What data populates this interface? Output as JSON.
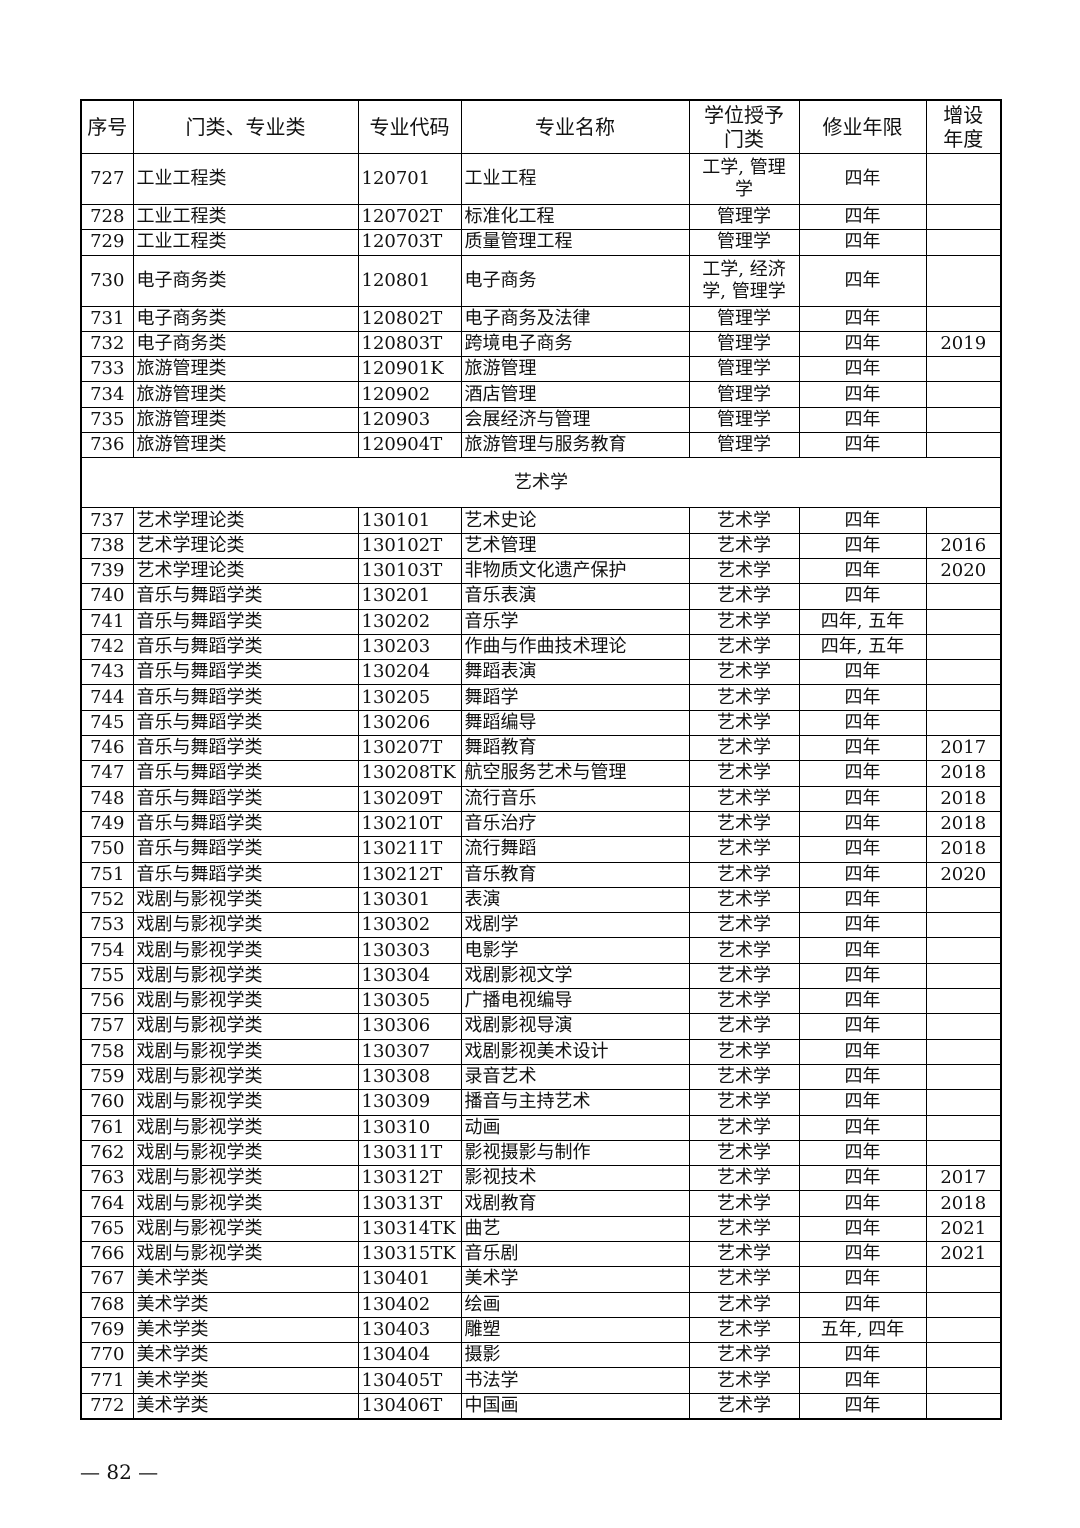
{
  "table": {
    "headers": [
      "序号",
      "门类、专业类",
      "专业代码",
      "专业名称",
      "学位授予门类",
      "修业年限",
      "增设年度"
    ],
    "rows_before": [
      [
        "727",
        "工业工程类",
        "120701",
        "工业工程",
        "工学, 管理学",
        "四年",
        ""
      ],
      [
        "728",
        "工业工程类",
        "120702T",
        "标准化工程",
        "管理学",
        "四年",
        ""
      ],
      [
        "729",
        "工业工程类",
        "120703T",
        "质量管理工程",
        "管理学",
        "四年",
        ""
      ],
      [
        "730",
        "电子商务类",
        "120801",
        "电子商务",
        "工学, 经济学, 管理学",
        "四年",
        ""
      ],
      [
        "731",
        "电子商务类",
        "120802T",
        "电子商务及法律",
        "管理学",
        "四年",
        ""
      ],
      [
        "732",
        "电子商务类",
        "120803T",
        "跨境电子商务",
        "管理学",
        "四年",
        "2019"
      ],
      [
        "733",
        "旅游管理类",
        "120901K",
        "旅游管理",
        "管理学",
        "四年",
        ""
      ],
      [
        "734",
        "旅游管理类",
        "120902",
        "酒店管理",
        "管理学",
        "四年",
        ""
      ],
      [
        "735",
        "旅游管理类",
        "120903",
        "会展经济与管理",
        "管理学",
        "四年",
        ""
      ],
      [
        "736",
        "旅游管理类",
        "120904T",
        "旅游管理与服务教育",
        "管理学",
        "四年",
        ""
      ]
    ],
    "section_title": "艺术学",
    "rows_after": [
      [
        "737",
        "艺术学理论类",
        "130101",
        "艺术史论",
        "艺术学",
        "四年",
        ""
      ],
      [
        "738",
        "艺术学理论类",
        "130102T",
        "艺术管理",
        "艺术学",
        "四年",
        "2016"
      ],
      [
        "739",
        "艺术学理论类",
        "130103T",
        "非物质文化遗产保护",
        "艺术学",
        "四年",
        "2020"
      ],
      [
        "740",
        "音乐与舞蹈学类",
        "130201",
        "音乐表演",
        "艺术学",
        "四年",
        ""
      ],
      [
        "741",
        "音乐与舞蹈学类",
        "130202",
        "音乐学",
        "艺术学",
        "四年, 五年",
        ""
      ],
      [
        "742",
        "音乐与舞蹈学类",
        "130203",
        "作曲与作曲技术理论",
        "艺术学",
        "四年, 五年",
        ""
      ],
      [
        "743",
        "音乐与舞蹈学类",
        "130204",
        "舞蹈表演",
        "艺术学",
        "四年",
        ""
      ],
      [
        "744",
        "音乐与舞蹈学类",
        "130205",
        "舞蹈学",
        "艺术学",
        "四年",
        ""
      ],
      [
        "745",
        "音乐与舞蹈学类",
        "130206",
        "舞蹈编导",
        "艺术学",
        "四年",
        ""
      ],
      [
        "746",
        "音乐与舞蹈学类",
        "130207T",
        "舞蹈教育",
        "艺术学",
        "四年",
        "2017"
      ],
      [
        "747",
        "音乐与舞蹈学类",
        "130208TK",
        "航空服务艺术与管理",
        "艺术学",
        "四年",
        "2018"
      ],
      [
        "748",
        "音乐与舞蹈学类",
        "130209T",
        "流行音乐",
        "艺术学",
        "四年",
        "2018"
      ],
      [
        "749",
        "音乐与舞蹈学类",
        "130210T",
        "音乐治疗",
        "艺术学",
        "四年",
        "2018"
      ],
      [
        "750",
        "音乐与舞蹈学类",
        "130211T",
        "流行舞蹈",
        "艺术学",
        "四年",
        "2018"
      ],
      [
        "751",
        "音乐与舞蹈学类",
        "130212T",
        "音乐教育",
        "艺术学",
        "四年",
        "2020"
      ],
      [
        "752",
        "戏剧与影视学类",
        "130301",
        "表演",
        "艺术学",
        "四年",
        ""
      ],
      [
        "753",
        "戏剧与影视学类",
        "130302",
        "戏剧学",
        "艺术学",
        "四年",
        ""
      ],
      [
        "754",
        "戏剧与影视学类",
        "130303",
        "电影学",
        "艺术学",
        "四年",
        ""
      ],
      [
        "755",
        "戏剧与影视学类",
        "130304",
        "戏剧影视文学",
        "艺术学",
        "四年",
        ""
      ],
      [
        "756",
        "戏剧与影视学类",
        "130305",
        "广播电视编导",
        "艺术学",
        "四年",
        ""
      ],
      [
        "757",
        "戏剧与影视学类",
        "130306",
        "戏剧影视导演",
        "艺术学",
        "四年",
        ""
      ],
      [
        "758",
        "戏剧与影视学类",
        "130307",
        "戏剧影视美术设计",
        "艺术学",
        "四年",
        ""
      ],
      [
        "759",
        "戏剧与影视学类",
        "130308",
        "录音艺术",
        "艺术学",
        "四年",
        ""
      ],
      [
        "760",
        "戏剧与影视学类",
        "130309",
        "播音与主持艺术",
        "艺术学",
        "四年",
        ""
      ],
      [
        "761",
        "戏剧与影视学类",
        "130310",
        "动画",
        "艺术学",
        "四年",
        ""
      ],
      [
        "762",
        "戏剧与影视学类",
        "130311T",
        "影视摄影与制作",
        "艺术学",
        "四年",
        ""
      ],
      [
        "763",
        "戏剧与影视学类",
        "130312T",
        "影视技术",
        "艺术学",
        "四年",
        "2017"
      ],
      [
        "764",
        "戏剧与影视学类",
        "130313T",
        "戏剧教育",
        "艺术学",
        "四年",
        "2018"
      ],
      [
        "765",
        "戏剧与影视学类",
        "130314TK",
        "曲艺",
        "艺术学",
        "四年",
        "2021"
      ],
      [
        "766",
        "戏剧与影视学类",
        "130315TK",
        "音乐剧",
        "艺术学",
        "四年",
        "2021"
      ],
      [
        "767",
        "美术学类",
        "130401",
        "美术学",
        "艺术学",
        "四年",
        ""
      ],
      [
        "768",
        "美术学类",
        "130402",
        "绘画",
        "艺术学",
        "四年",
        ""
      ],
      [
        "769",
        "美术学类",
        "130403",
        "雕塑",
        "艺术学",
        "五年, 四年",
        ""
      ],
      [
        "770",
        "美术学类",
        "130404",
        "摄影",
        "艺术学",
        "四年",
        ""
      ],
      [
        "771",
        "美术学类",
        "130405T",
        "书法学",
        "艺术学",
        "四年",
        ""
      ],
      [
        "772",
        "美术学类",
        "130406T",
        "中国画",
        "艺术学",
        "四年",
        ""
      ]
    ]
  },
  "page_number": "— 82 —"
}
